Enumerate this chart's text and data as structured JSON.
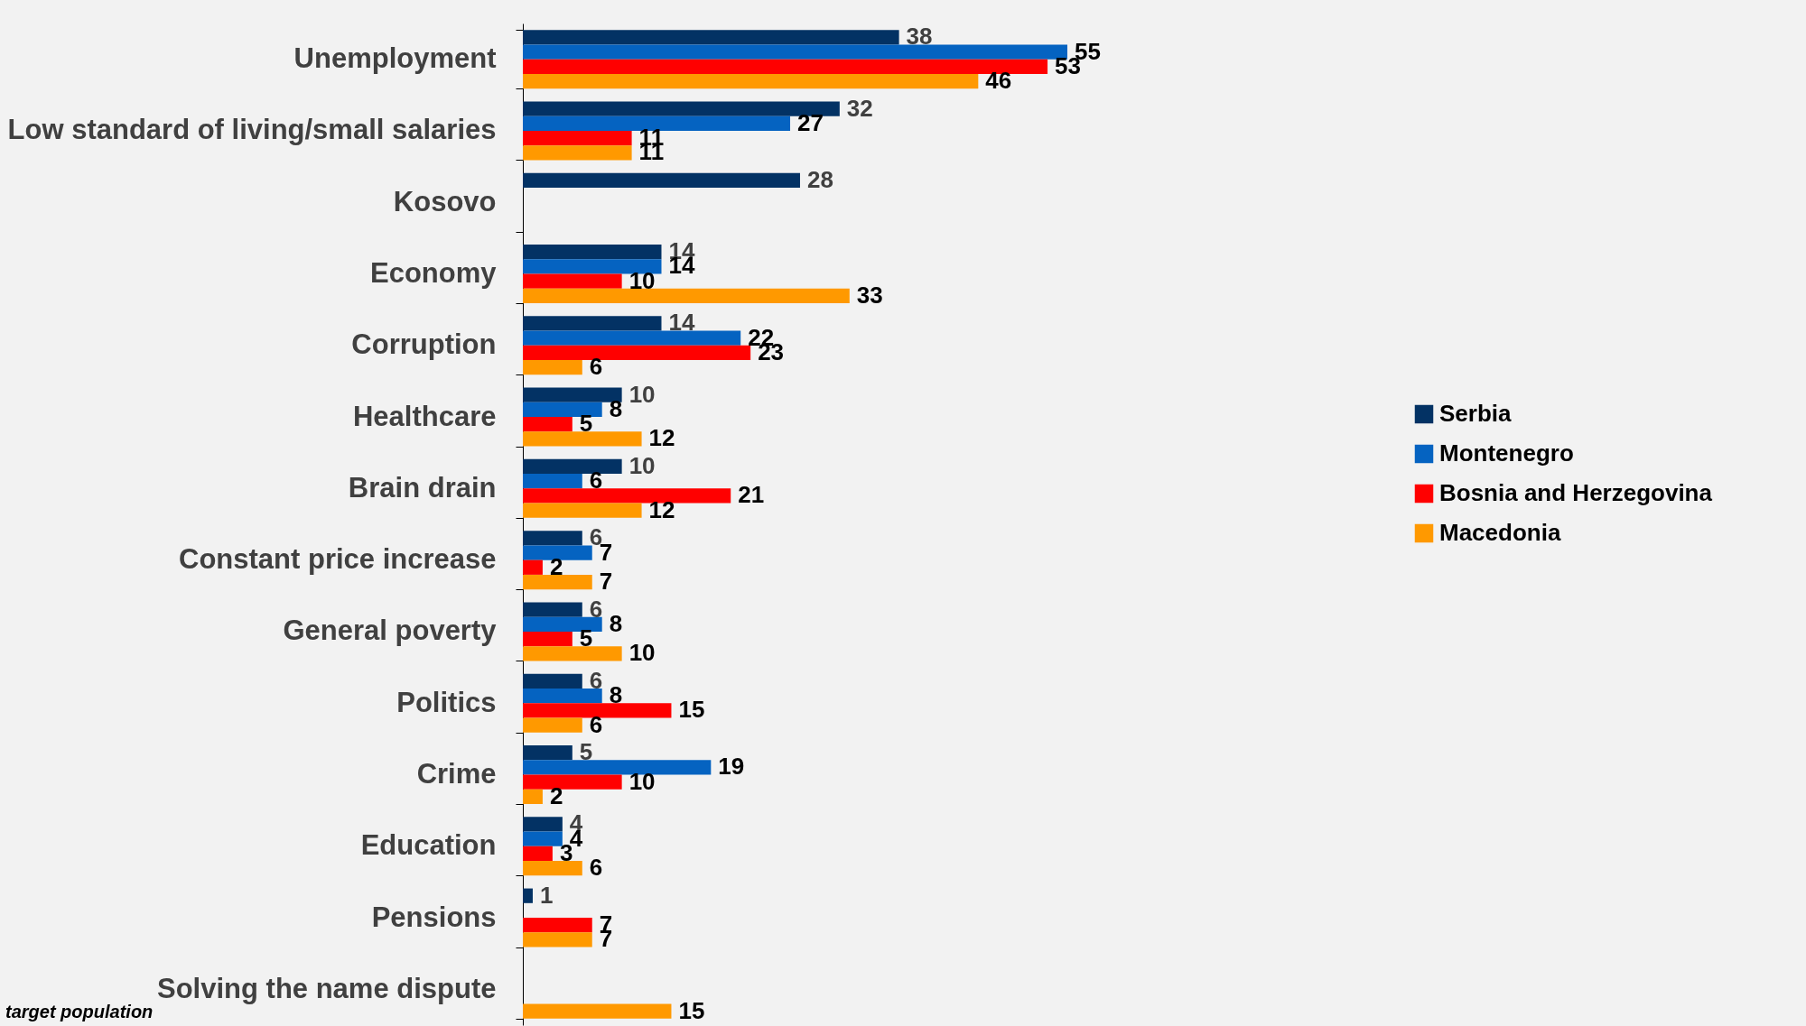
{
  "chart_data": {
    "type": "bar",
    "orientation": "horizontal",
    "tick_labels": "y",
    "data_labels": true,
    "legend": "right",
    "categories": [
      "Unemployment",
      "Low standard of living/small salaries",
      "Kosovo",
      "Economy",
      "Corruption",
      "Healthcare",
      "Brain drain",
      "Constant price increase",
      "General poverty",
      "Politics",
      "Crime",
      "Education",
      "Pensions",
      "Solving the name dispute"
    ],
    "series": [
      {
        "name": "Serbia",
        "color": "#033264",
        "values": [
          38,
          32,
          28,
          14,
          14,
          10,
          10,
          6,
          6,
          6,
          5,
          4,
          1,
          null
        ]
      },
      {
        "name": "Montenegro",
        "color": "#0563c1",
        "values": [
          55,
          27,
          null,
          14,
          22,
          8,
          6,
          7,
          8,
          8,
          19,
          4,
          null,
          null
        ]
      },
      {
        "name": "Bosnia and Herzegovina",
        "color": "#ff0000",
        "values": [
          53,
          11,
          null,
          10,
          23,
          5,
          21,
          2,
          5,
          15,
          10,
          3,
          7,
          null
        ]
      },
      {
        "name": "Macedonia",
        "color": "#ff9900",
        "values": [
          46,
          11,
          null,
          33,
          6,
          12,
          12,
          7,
          10,
          6,
          2,
          6,
          7,
          15
        ]
      }
    ],
    "annotations": [
      "target population"
    ]
  }
}
